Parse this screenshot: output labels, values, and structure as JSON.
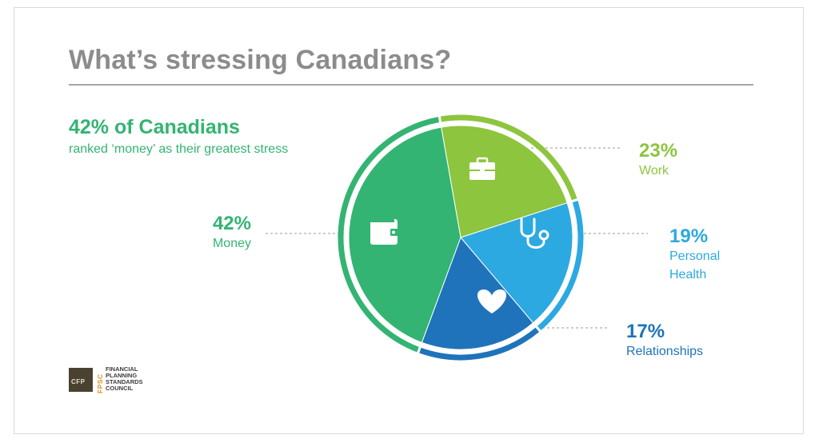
{
  "title": "What’s stressing Canadians?",
  "headline": {
    "stat": "42% of Canadians",
    "text": "ranked ‘money’ as their greatest stress"
  },
  "colors": {
    "title": "#8c8c8c",
    "rule": "#a6a6a6",
    "money": "#33b472",
    "work": "#8dc53e",
    "health": "#2ca9e1",
    "relationships": "#1f73ba",
    "leader": "#999999"
  },
  "chart_data": {
    "type": "pie",
    "title": "What’s stressing Canadians?",
    "slices": [
      {
        "label": "Work",
        "value": 23,
        "value_label": "23%",
        "color": "#8dc53e",
        "icon": "briefcase-icon"
      },
      {
        "label": "Personal Health",
        "label_lines": [
          "Personal",
          "Health"
        ],
        "value": 19,
        "value_label": "19%",
        "color": "#2ca9e1",
        "icon": "stethoscope-icon"
      },
      {
        "label": "Relationships",
        "value": 17,
        "value_label": "17%",
        "color": "#1f73ba",
        "icon": "heart-icon"
      },
      {
        "label": "Money",
        "value": 42,
        "value_label": "42%",
        "color": "#33b472",
        "icon": "wallet-icon"
      }
    ]
  },
  "logo": {
    "mark": "CFP",
    "side": "FPSC",
    "lines": [
      "FINANCIAL",
      "PLANNING",
      "STANDARDS",
      "COUNCIL"
    ]
  }
}
